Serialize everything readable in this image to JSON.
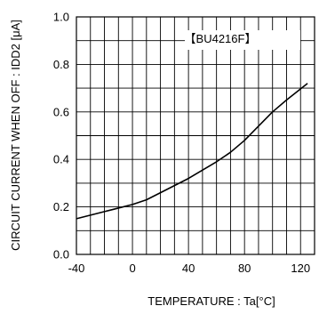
{
  "chart_data": {
    "type": "line",
    "title": "",
    "xlabel": "TEMPERATURE : Ta[°C]",
    "ylabel": "CIRCUIT CURRENT WHEN OFF : IDD2 [μA]",
    "xlim": [
      -40,
      130
    ],
    "ylim": [
      0.0,
      1.0
    ],
    "x_ticks": [
      -40,
      0,
      40,
      80,
      120
    ],
    "x_tick_labels": [
      "-40",
      "0",
      "40",
      "80",
      "120"
    ],
    "y_ticks": [
      0.0,
      0.2,
      0.4,
      0.6,
      0.8,
      1.0
    ],
    "y_tick_labels": [
      "0.0",
      "0.2",
      "0.4",
      "0.6",
      "0.8",
      "1.0"
    ],
    "grid": true,
    "legend_position": "top-right",
    "series": [
      {
        "name": "BU4216F",
        "color": "#000000",
        "x": [
          -40,
          -20,
          0,
          10,
          20,
          40,
          60,
          70,
          80,
          90,
          100,
          110,
          125
        ],
        "y": [
          0.15,
          0.18,
          0.21,
          0.23,
          0.26,
          0.32,
          0.39,
          0.43,
          0.48,
          0.54,
          0.6,
          0.65,
          0.72
        ]
      }
    ]
  }
}
